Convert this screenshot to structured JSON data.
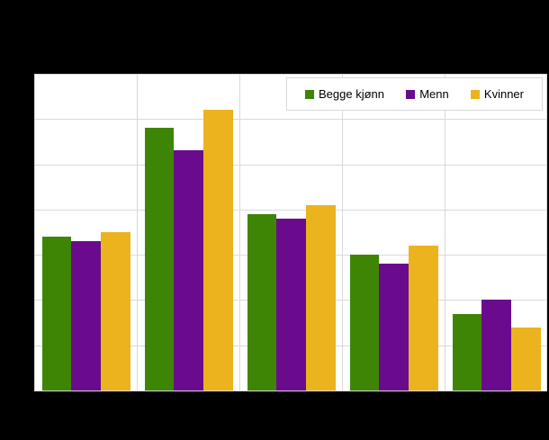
{
  "colors": {
    "page_background": "#000000",
    "plot_background": "#ffffff",
    "gridline": "#d9d9d9",
    "legend_border": "#d9d9d9",
    "legend_text": "#000000"
  },
  "legend": {
    "items": [
      {
        "label": "Begge kjønn",
        "color": "#3e8505"
      },
      {
        "label": "Menn",
        "color": "#690b8c"
      },
      {
        "label": "Kvinner",
        "color": "#ebb31d"
      }
    ]
  },
  "chart_data": {
    "type": "bar",
    "categories": [
      "",
      "",
      "",
      "",
      ""
    ],
    "series": [
      {
        "name": "Begge kjønn",
        "color": "#3e8505",
        "values": [
          34,
          58,
          39,
          30,
          17
        ]
      },
      {
        "name": "Menn",
        "color": "#690b8c",
        "values": [
          33,
          53,
          38,
          28,
          20
        ]
      },
      {
        "name": "Kvinner",
        "color": "#ebb31d",
        "values": [
          35,
          62,
          41,
          32,
          14
        ]
      }
    ],
    "ylim": [
      0,
      70
    ],
    "y_gridline_step": 10,
    "grid": true,
    "vertical_category_gridlines": true,
    "axis_tick_labels_visible": false,
    "legend_position": "top-right"
  }
}
